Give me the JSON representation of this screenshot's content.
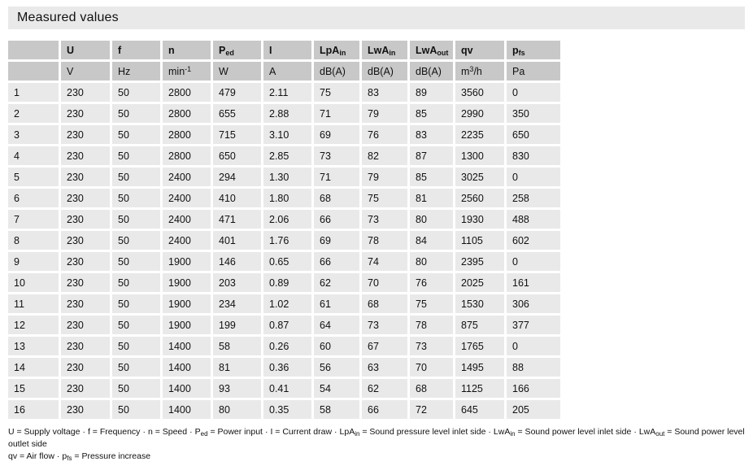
{
  "title": "Measured values",
  "colors": {
    "header_cell_bg": "#c8c8c8",
    "data_cell_bg": "#e9e9e9",
    "title_bar_bg": "#e9e9e9",
    "text": "#111111",
    "page_bg": "#ffffff"
  },
  "table": {
    "col_keys": [
      "row",
      "u",
      "f",
      "n",
      "ped",
      "i",
      "lpa-in",
      "lwa-in",
      "lwa-out",
      "qv",
      "pfs"
    ],
    "headers": [
      {
        "main": ""
      },
      {
        "main": "U"
      },
      {
        "main": "f"
      },
      {
        "main": "n"
      },
      {
        "main": "P",
        "sub": "ed"
      },
      {
        "main": "I"
      },
      {
        "main": "LpA",
        "sub": "in"
      },
      {
        "main": "LwA",
        "sub": "in"
      },
      {
        "main": "LwA",
        "sub": "out"
      },
      {
        "main": "qv"
      },
      {
        "main": "p",
        "sub": "fs"
      }
    ],
    "units": [
      {
        "main": ""
      },
      {
        "main": "V"
      },
      {
        "main": "Hz"
      },
      {
        "main": "min",
        "sup": "-1"
      },
      {
        "main": "W"
      },
      {
        "main": "A"
      },
      {
        "main": "dB(A)"
      },
      {
        "main": "dB(A)"
      },
      {
        "main": "dB(A)"
      },
      {
        "main": "m",
        "sup": "3",
        "rest": "/h"
      },
      {
        "main": "Pa"
      }
    ],
    "rows": [
      [
        "1",
        "230",
        "50",
        "2800",
        "479",
        "2.11",
        "75",
        "83",
        "89",
        "3560",
        "0"
      ],
      [
        "2",
        "230",
        "50",
        "2800",
        "655",
        "2.88",
        "71",
        "79",
        "85",
        "2990",
        "350"
      ],
      [
        "3",
        "230",
        "50",
        "2800",
        "715",
        "3.10",
        "69",
        "76",
        "83",
        "2235",
        "650"
      ],
      [
        "4",
        "230",
        "50",
        "2800",
        "650",
        "2.85",
        "73",
        "82",
        "87",
        "1300",
        "830"
      ],
      [
        "5",
        "230",
        "50",
        "2400",
        "294",
        "1.30",
        "71",
        "79",
        "85",
        "3025",
        "0"
      ],
      [
        "6",
        "230",
        "50",
        "2400",
        "410",
        "1.80",
        "68",
        "75",
        "81",
        "2560",
        "258"
      ],
      [
        "7",
        "230",
        "50",
        "2400",
        "471",
        "2.06",
        "66",
        "73",
        "80",
        "1930",
        "488"
      ],
      [
        "8",
        "230",
        "50",
        "2400",
        "401",
        "1.76",
        "69",
        "78",
        "84",
        "1105",
        "602"
      ],
      [
        "9",
        "230",
        "50",
        "1900",
        "146",
        "0.65",
        "66",
        "74",
        "80",
        "2395",
        "0"
      ],
      [
        "10",
        "230",
        "50",
        "1900",
        "203",
        "0.89",
        "62",
        "70",
        "76",
        "2025",
        "161"
      ],
      [
        "11",
        "230",
        "50",
        "1900",
        "234",
        "1.02",
        "61",
        "68",
        "75",
        "1530",
        "306"
      ],
      [
        "12",
        "230",
        "50",
        "1900",
        "199",
        "0.87",
        "64",
        "73",
        "78",
        "875",
        "377"
      ],
      [
        "13",
        "230",
        "50",
        "1400",
        "58",
        "0.26",
        "60",
        "67",
        "73",
        "1765",
        "0"
      ],
      [
        "14",
        "230",
        "50",
        "1400",
        "81",
        "0.36",
        "56",
        "63",
        "70",
        "1495",
        "88"
      ],
      [
        "15",
        "230",
        "50",
        "1400",
        "93",
        "0.41",
        "54",
        "62",
        "68",
        "1125",
        "166"
      ],
      [
        "16",
        "230",
        "50",
        "1400",
        "80",
        "0.35",
        "58",
        "66",
        "72",
        "645",
        "205"
      ]
    ]
  },
  "footnotes": {
    "separator": "·",
    "lines": [
      [
        {
          "t": "U = Supply voltage"
        },
        {
          "t": "f = Frequency"
        },
        {
          "t": "n = Speed"
        },
        {
          "b": "P",
          "s": "ed",
          "t": " = Power input"
        },
        {
          "t": "I = Current draw"
        },
        {
          "b": "LpA",
          "s": "in",
          "t": " = Sound pressure level inlet side"
        },
        {
          "b": "LwA",
          "s": "in",
          "t": " = Sound power level inlet side"
        },
        {
          "b": "LwA",
          "s": "out",
          "t": " = Sound power level outlet side"
        }
      ],
      [
        {
          "t": "qv = Air flow"
        },
        {
          "b": "p",
          "s": "fs",
          "t": " = Pressure increase"
        }
      ]
    ]
  }
}
